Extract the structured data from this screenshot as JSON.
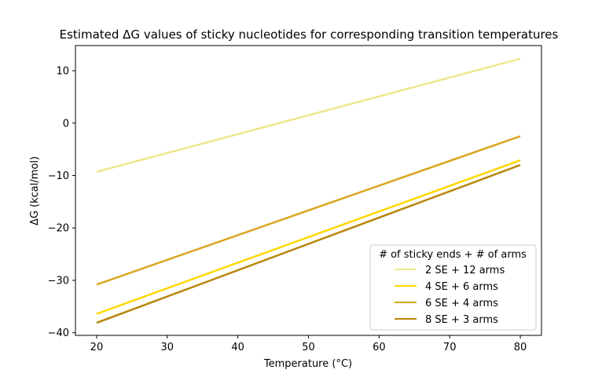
{
  "chart_data": {
    "type": "line",
    "title": "Estimated ΔG values of sticky nucleotides for corresponding transition temperatures",
    "xlabel": "Temperature (°C)",
    "ylabel": "ΔG (kcal/mol)",
    "xlim": [
      17,
      83
    ],
    "ylim": [
      -40.5,
      14.8
    ],
    "x_ticks": [
      20,
      30,
      40,
      50,
      60,
      70,
      80
    ],
    "y_ticks": [
      -40,
      -30,
      -20,
      -10,
      0,
      10
    ],
    "y_tick_labels": [
      "−40",
      "−30",
      "−20",
      "−10",
      "0",
      "10"
    ],
    "legend": {
      "title": "# of sticky ends + # of arms",
      "position": "lower-right"
    },
    "series": [
      {
        "name": "2 SE + 12 arms",
        "color": "#f0e68c",
        "x": [
          20,
          80
        ],
        "values": [
          -9.3,
          12.3
        ]
      },
      {
        "name": "4 SE + 6 arms",
        "color": "#ffd700",
        "x": [
          20,
          80
        ],
        "values": [
          -36.4,
          -7.1
        ]
      },
      {
        "name": "6 SE + 4 arms",
        "color": "#daa520",
        "x": [
          20,
          80
        ],
        "values": [
          -30.8,
          -2.5
        ]
      },
      {
        "name": "8 SE + 3 arms",
        "color": "#b8860b",
        "x": [
          20,
          80
        ],
        "values": [
          -38.1,
          -8.0
        ]
      }
    ]
  }
}
